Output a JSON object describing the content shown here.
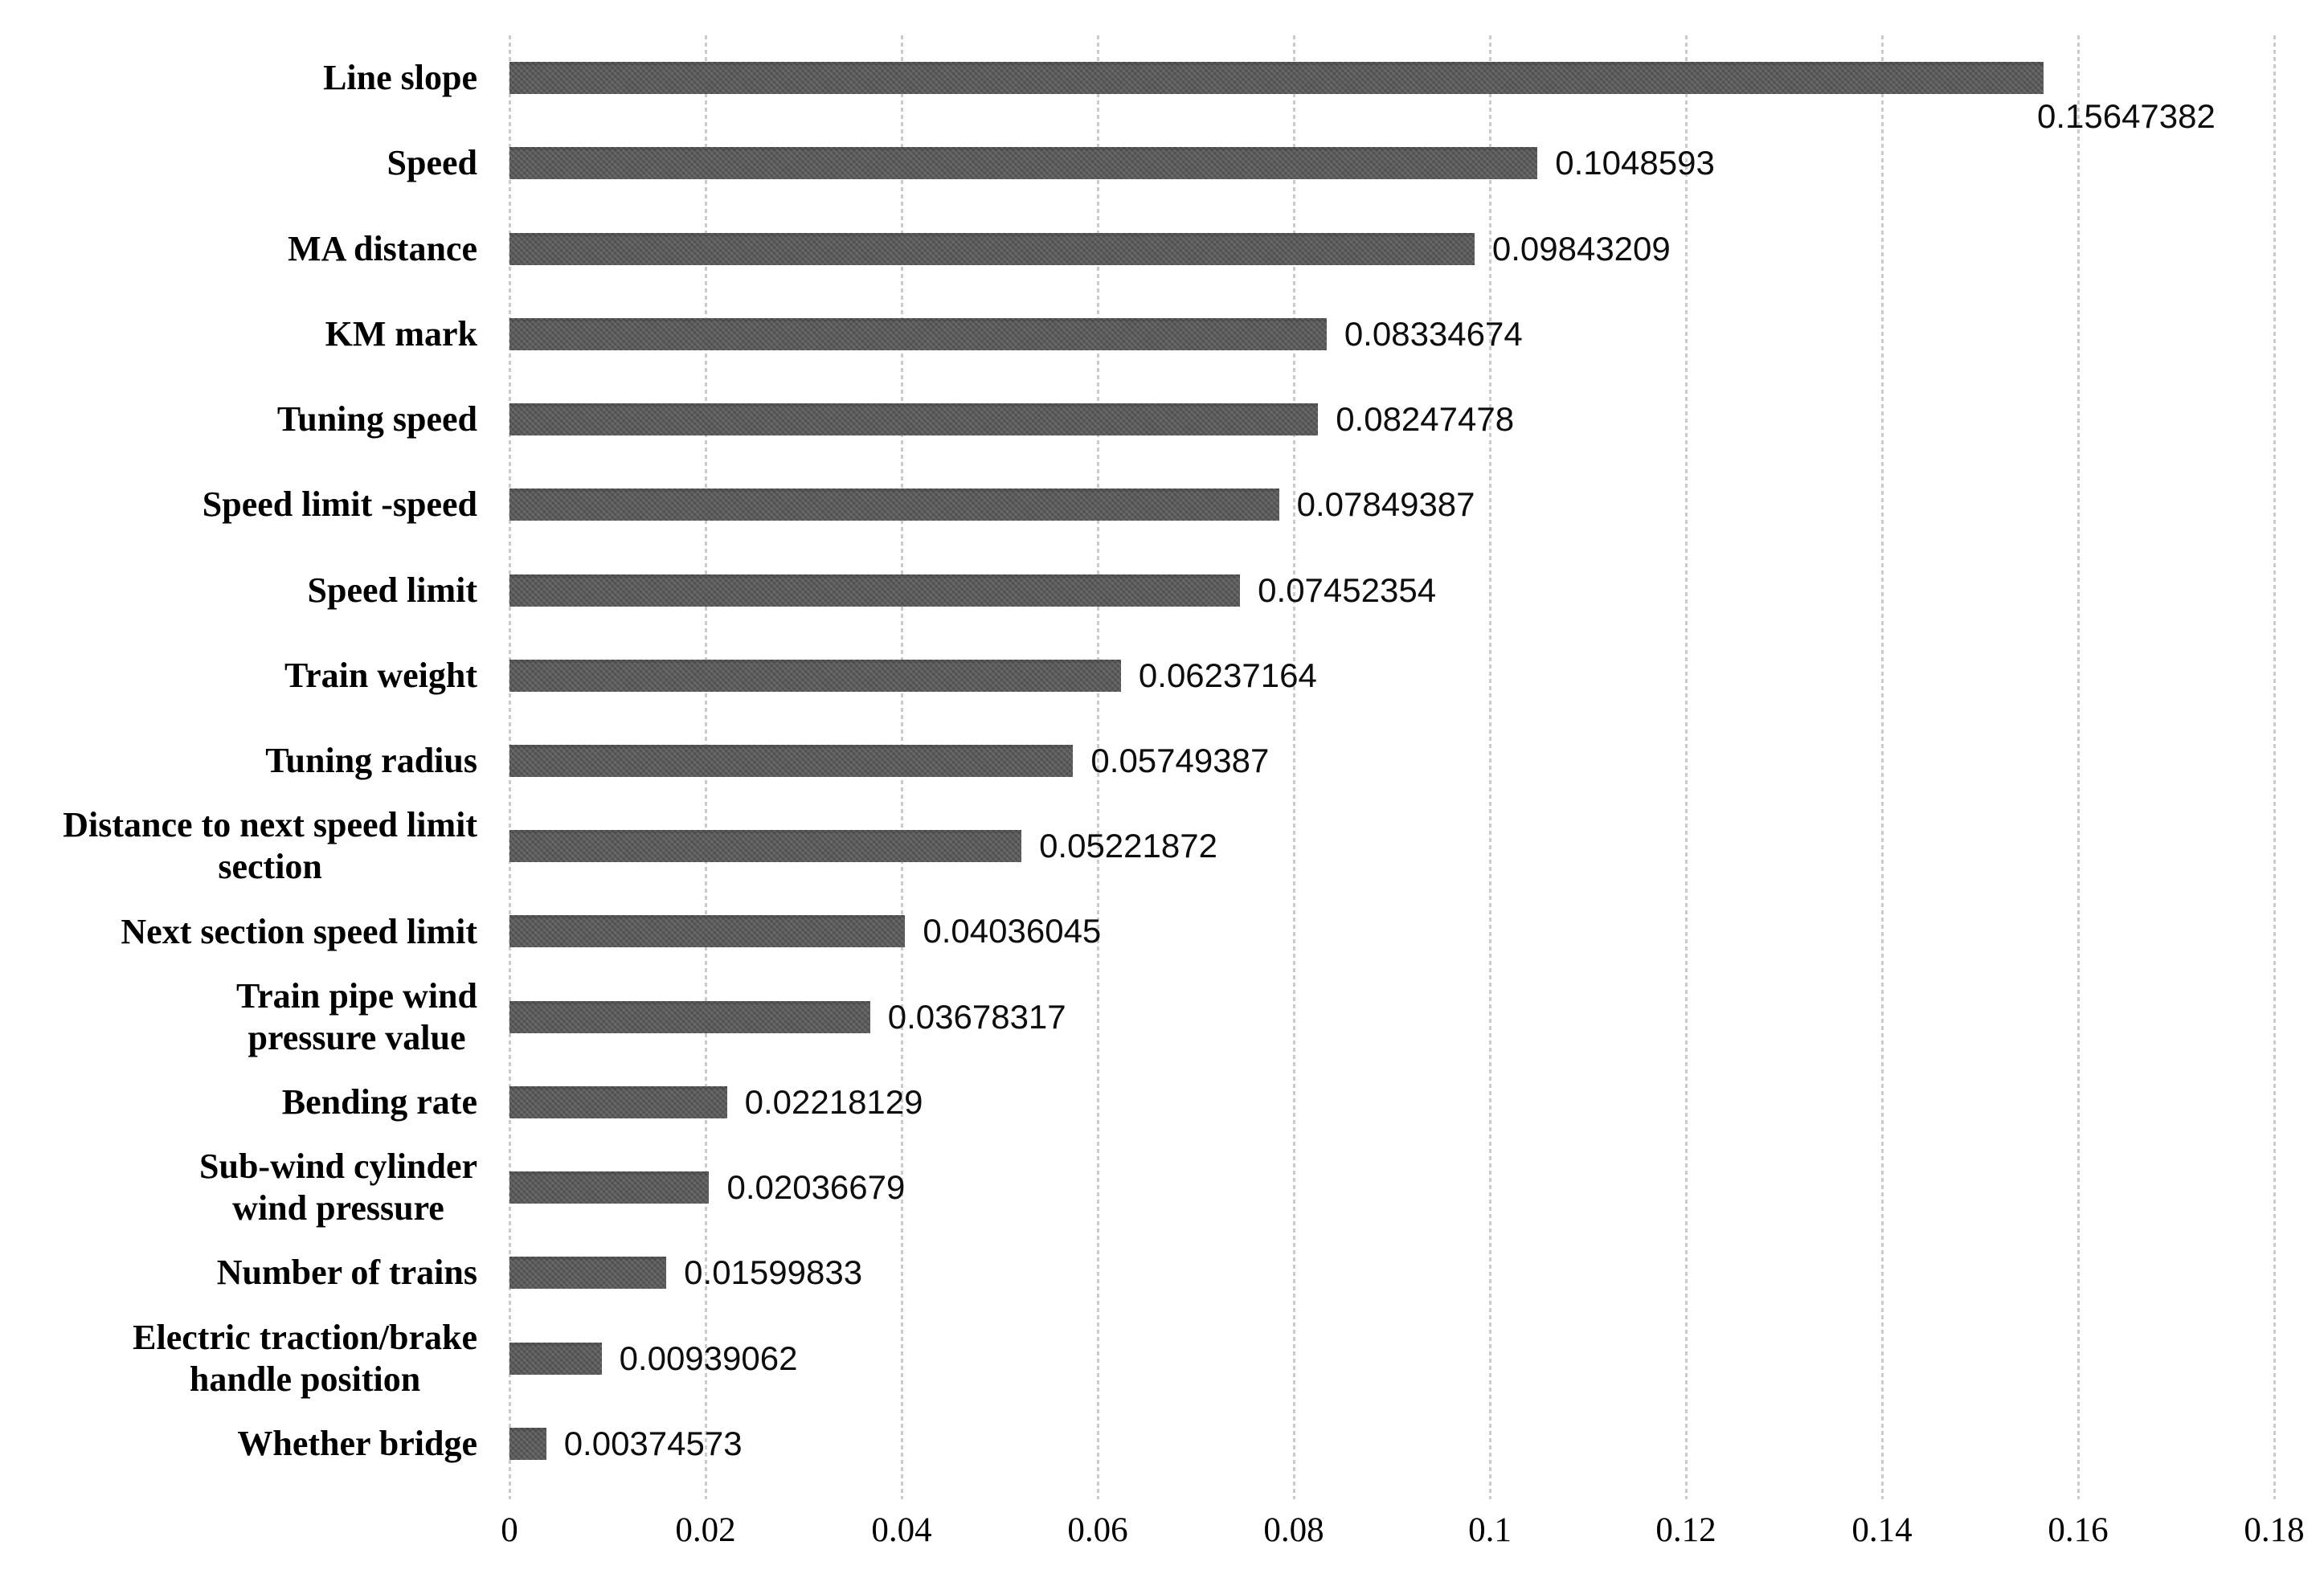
{
  "chart_data": {
    "type": "bar",
    "orientation": "horizontal",
    "title": "",
    "xlabel": "",
    "ylabel": "",
    "legend": "none",
    "grid": "vertical-dotted",
    "xlim": [
      0,
      0.18
    ],
    "x_ticks": [
      "0",
      "0.02",
      "0.04",
      "0.06",
      "0.08",
      "0.1",
      "0.12",
      "0.14",
      "0.16",
      "0.18"
    ],
    "categories": [
      "Line slope",
      "Speed",
      "MA distance",
      "KM mark",
      "Tuning speed",
      "Speed limit -speed",
      "Speed limit",
      "Train weight",
      "Tuning radius",
      "Distance to next speed limit\nsection",
      "Next section speed limit",
      "Train pipe wind\npressure value",
      "Bending rate",
      "Sub-wind cylinder\nwind pressure",
      "Number of trains",
      "Electric traction/brake\nhandle position",
      "Whether bridge"
    ],
    "values": [
      0.15647382,
      0.1048593,
      0.09843209,
      0.08334674,
      0.08247478,
      0.07849387,
      0.07452354,
      0.06237164,
      0.05749387,
      0.05221872,
      0.04036045,
      0.03678317,
      0.02218129,
      0.02036679,
      0.01599833,
      0.00939062,
      0.00374573
    ],
    "value_labels": [
      "0.15647382",
      "0.1048593",
      "0.09843209",
      "0.08334674",
      "0.08247478",
      "0.07849387",
      "0.07452354",
      "0.06237164",
      "0.05749387",
      "0.05221872",
      "0.04036045",
      "0.03678317",
      "0.02218129",
      "0.02036679",
      "0.01599833",
      "0.00939062",
      "0.00374573"
    ],
    "first_value_label_position": "below-bar-end",
    "colors": {
      "bar": "#5a5a5a",
      "gridline": "#cbcbcb",
      "text": "#000000"
    }
  }
}
